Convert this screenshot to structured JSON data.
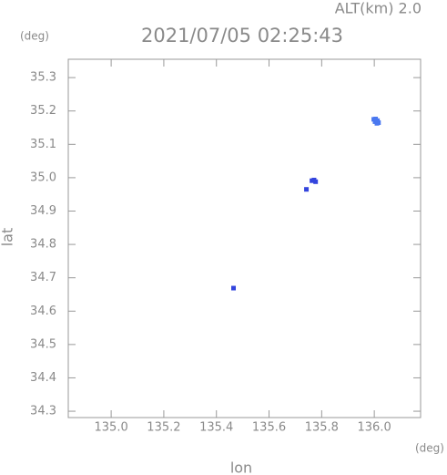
{
  "chart_data": {
    "type": "scatter",
    "title": "2021/07/05 02:25:43",
    "subtitle": "ALT(km) 2.0",
    "y_unit": "(deg)",
    "x_unit": "(deg)",
    "x_label": "lon",
    "y_label": "lat",
    "xlim": [
      134.837,
      136.176
    ],
    "ylim": [
      34.281,
      35.355
    ],
    "xticks": [
      {
        "value": 135.0,
        "label": "135.0"
      },
      135.2,
      135.4,
      135.6,
      135.8,
      {
        "value": 136.0,
        "label": "136.0"
      }
    ],
    "yticks": [
      34.3,
      34.4,
      34.5,
      34.6,
      34.7,
      34.8,
      34.9,
      {
        "value": 35.0,
        "label": "35.0"
      },
      35.1,
      35.2,
      35.3
    ],
    "series": [
      {
        "color": "#4a78f0",
        "x": [
          135.998,
          136.005,
          136.012,
          136.016,
          136.003,
          136.01
        ],
        "y": [
          35.175,
          35.176,
          35.171,
          35.165,
          35.168,
          35.163
        ]
      },
      {
        "color": "#3344dd",
        "x": [
          135.763,
          135.771,
          135.777,
          135.742,
          135.465
        ],
        "y": [
          34.991,
          34.993,
          34.988,
          34.965,
          34.669
        ]
      }
    ]
  }
}
